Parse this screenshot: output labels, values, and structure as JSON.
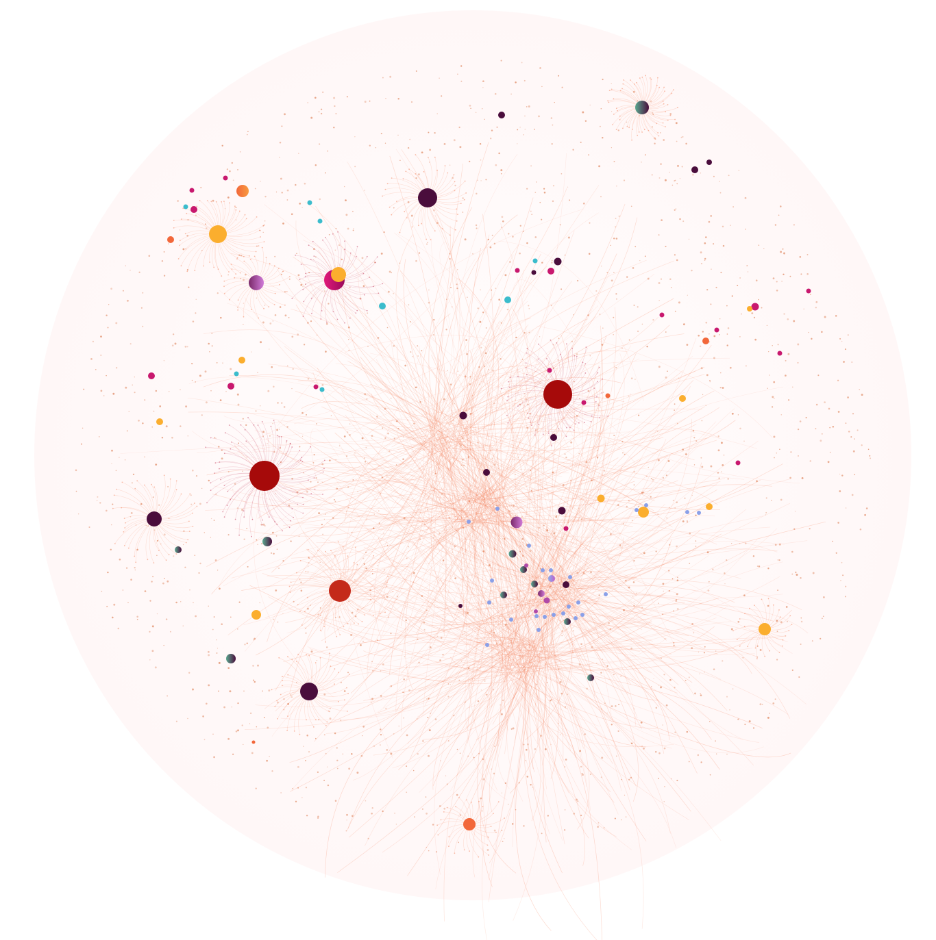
{
  "graph": {
    "palette": {
      "background_disc": "#fffafa",
      "edge": "#f47f57",
      "edge_hub": "#c43a5a",
      "leaf_dot": "#e08a64",
      "crimson": "#a60a0a",
      "red": "#c42a1a",
      "plum": "#4a0d3c",
      "magenta": "#c8186e",
      "orange": "#f2673a",
      "amber": "#fbae2e",
      "cyan": "#3bbccc",
      "teal_plum": "#3e8c7c",
      "violet": "#b04aa8",
      "lilac_blue": "#8aa0e8"
    },
    "hub_nodes": [
      {
        "id": "hub-crimson-west",
        "color": "crimson",
        "size": "large"
      },
      {
        "id": "hub-crimson-center",
        "color": "crimson",
        "size": "large"
      },
      {
        "id": "hub-red-southwest",
        "color": "red",
        "size": "medium"
      },
      {
        "id": "hub-plum-north",
        "color": "plum",
        "size": "medium"
      },
      {
        "id": "hub-plum-west",
        "color": "plum",
        "size": "medium"
      },
      {
        "id": "hub-plum-south",
        "color": "plum",
        "size": "medium"
      },
      {
        "id": "hub-amber-northwest",
        "color": "amber",
        "size": "medium"
      },
      {
        "id": "hub-amber-east",
        "color": "amber",
        "size": "small"
      },
      {
        "id": "hub-magenta-amber-north",
        "color": "magenta",
        "size": "medium"
      },
      {
        "id": "hub-violet-northwest",
        "color": "violet",
        "size": "small"
      },
      {
        "id": "hub-orange-south",
        "color": "orange",
        "size": "small"
      },
      {
        "id": "hub-teal-northeast",
        "color": "teal_plum",
        "size": "small"
      }
    ],
    "dense_core": {
      "label": "",
      "color": "edge"
    }
  }
}
